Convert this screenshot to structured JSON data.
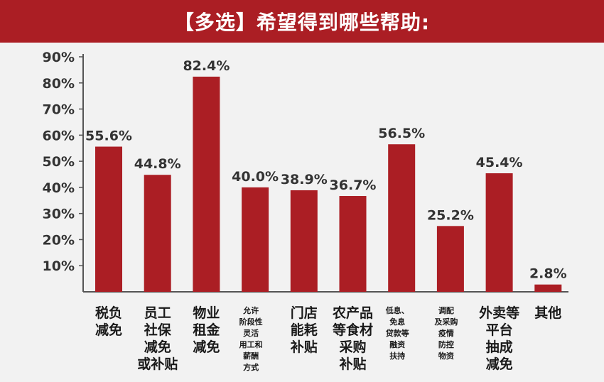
{
  "header": {
    "title": "【多选】希望得到哪些帮助:"
  },
  "colors": {
    "bar": "#ab1e24",
    "header": "#ab1e24",
    "axis": "#555555"
  },
  "chart_data": {
    "type": "bar",
    "title": "【多选】希望得到哪些帮助:",
    "categories": [
      "税负减免",
      "员工社保减免或补贴",
      "物业租金减免",
      "允许阶段性灵活用工和薪酬方式",
      "门店能耗补贴",
      "农产品等食材采购补贴",
      "低息、免息贷款等融资扶持",
      "调配及采购疫情防控物资",
      "外卖等平台抽成减免",
      "其他"
    ],
    "category_label_lines": [
      [
        "税负",
        "减免"
      ],
      [
        "员工",
        "社保",
        "减免",
        "或补贴"
      ],
      [
        "物业",
        "租金",
        "减免"
      ],
      [
        "允许",
        "阶段性",
        "灵活",
        "用工和",
        "薪酬",
        "方式"
      ],
      [
        "门店",
        "能耗",
        "补贴"
      ],
      [
        "农产品",
        "等食材",
        "采购",
        "补贴"
      ],
      [
        "低息、",
        "免息",
        "贷款等",
        "融资",
        "扶持"
      ],
      [
        "调配",
        "及采购",
        "疫情",
        "防控",
        "物资"
      ],
      [
        "外卖等",
        "平台",
        "抽成",
        "减免"
      ],
      [
        "其他"
      ]
    ],
    "category_label_small": [
      false,
      false,
      false,
      true,
      false,
      false,
      true,
      true,
      false,
      false
    ],
    "values": [
      55.6,
      44.8,
      82.4,
      40.0,
      38.9,
      36.7,
      56.5,
      25.2,
      45.4,
      2.8
    ],
    "value_labels": [
      "55.6%",
      "44.8%",
      "82.4%",
      "40.0%",
      "38.9%",
      "36.7%",
      "56.5%",
      "25.2%",
      "45.4%",
      "2.8%"
    ],
    "y_ticks": [
      "10%",
      "20%",
      "30%",
      "40%",
      "50%",
      "60%",
      "70%",
      "80%",
      "90%"
    ],
    "y_tick_values": [
      10,
      20,
      30,
      40,
      50,
      60,
      70,
      80,
      90
    ],
    "ylim": [
      0,
      90
    ],
    "grid": false,
    "legend": "none"
  }
}
